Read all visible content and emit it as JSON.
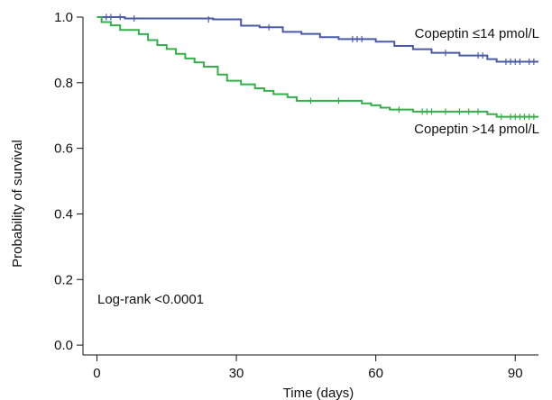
{
  "chart_data": {
    "type": "line",
    "xlabel": "Time (days)",
    "ylabel": "Probability of survival",
    "xlim": [
      -3,
      95
    ],
    "ylim": [
      -0.03,
      1.0
    ],
    "x_ticks": [
      0,
      30,
      60,
      90
    ],
    "y_ticks": [
      0.0,
      0.2,
      0.4,
      0.6,
      0.8,
      1.0
    ],
    "y_tick_labels": [
      "0.0",
      "0.2",
      "0.4",
      "0.6",
      "0.8",
      "1.0"
    ],
    "annotation": "Log-rank <0.0001",
    "series": [
      {
        "name": "Copeptin ≤14 pmol/L",
        "color": "#4a5aa8",
        "steps": [
          [
            0,
            1.0
          ],
          [
            6,
            0.996
          ],
          [
            25,
            0.993
          ],
          [
            31,
            0.974
          ],
          [
            35,
            0.969
          ],
          [
            40,
            0.955
          ],
          [
            44,
            0.949
          ],
          [
            48,
            0.939
          ],
          [
            52,
            0.933
          ],
          [
            60,
            0.925
          ],
          [
            64,
            0.912
          ],
          [
            68,
            0.902
          ],
          [
            72,
            0.891
          ],
          [
            78,
            0.883
          ],
          [
            84,
            0.872
          ],
          [
            86,
            0.864
          ],
          [
            95,
            0.864
          ]
        ],
        "censored": [
          [
            2,
            1.0
          ],
          [
            3,
            1.0
          ],
          [
            5,
            1.0
          ],
          [
            8,
            0.996
          ],
          [
            24,
            0.993
          ],
          [
            37,
            0.969
          ],
          [
            55,
            0.933
          ],
          [
            56,
            0.933
          ],
          [
            57,
            0.933
          ],
          [
            75,
            0.891
          ],
          [
            82,
            0.883
          ],
          [
            83,
            0.883
          ],
          [
            88,
            0.864
          ],
          [
            89,
            0.864
          ],
          [
            90,
            0.864
          ],
          [
            91,
            0.864
          ],
          [
            93,
            0.864
          ],
          [
            94,
            0.864
          ]
        ]
      },
      {
        "name": "Copeptin >14 pmol/L",
        "color": "#33b04a",
        "steps": [
          [
            0,
            1.0
          ],
          [
            1,
            0.985
          ],
          [
            3,
            0.975
          ],
          [
            5,
            0.961
          ],
          [
            9,
            0.948
          ],
          [
            11,
            0.93
          ],
          [
            13,
            0.915
          ],
          [
            15,
            0.903
          ],
          [
            17,
            0.888
          ],
          [
            19,
            0.874
          ],
          [
            21,
            0.862
          ],
          [
            23,
            0.849
          ],
          [
            26,
            0.825
          ],
          [
            28,
            0.806
          ],
          [
            31,
            0.795
          ],
          [
            34,
            0.783
          ],
          [
            36,
            0.775
          ],
          [
            38,
            0.765
          ],
          [
            41,
            0.756
          ],
          [
            43,
            0.745
          ],
          [
            57,
            0.737
          ],
          [
            59,
            0.731
          ],
          [
            61,
            0.724
          ],
          [
            63,
            0.718
          ],
          [
            68,
            0.712
          ],
          [
            84,
            0.704
          ],
          [
            86,
            0.696
          ],
          [
            95,
            0.696
          ]
        ],
        "censored": [
          [
            46,
            0.745
          ],
          [
            52,
            0.745
          ],
          [
            65,
            0.718
          ],
          [
            70,
            0.712
          ],
          [
            71,
            0.712
          ],
          [
            72,
            0.712
          ],
          [
            75,
            0.712
          ],
          [
            78,
            0.712
          ],
          [
            80,
            0.712
          ],
          [
            82,
            0.712
          ],
          [
            87,
            0.696
          ],
          [
            89,
            0.696
          ],
          [
            90,
            0.696
          ],
          [
            91,
            0.696
          ],
          [
            92,
            0.696
          ],
          [
            93,
            0.696
          ],
          [
            94,
            0.696
          ]
        ]
      }
    ]
  }
}
